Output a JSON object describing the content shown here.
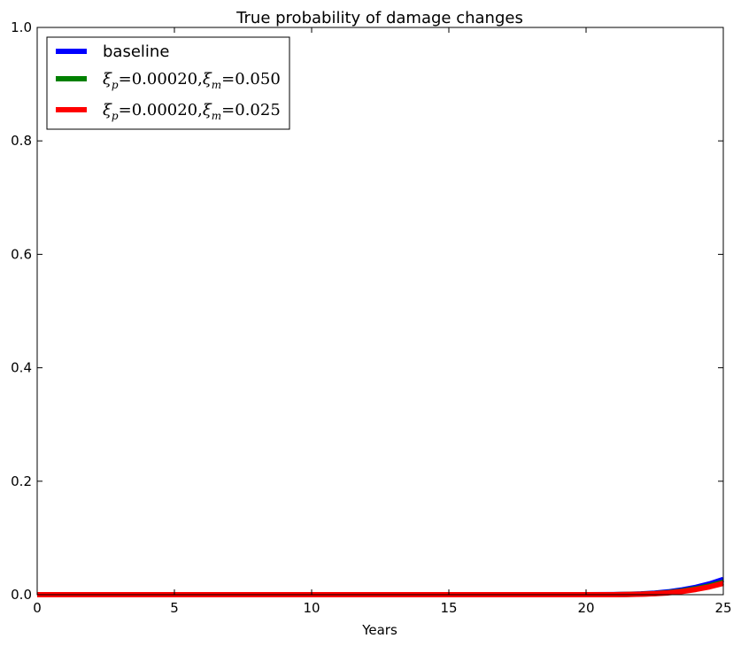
{
  "chart_data": {
    "type": "line",
    "title": "True probability of damage changes",
    "xlabel": "Years",
    "ylabel": "",
    "xlim": [
      0,
      25
    ],
    "ylim": [
      0.0,
      1.0
    ],
    "x_ticks": [
      0,
      5,
      10,
      15,
      20,
      25
    ],
    "x_tick_labels": [
      "0",
      "5",
      "10",
      "15",
      "20",
      "25"
    ],
    "y_ticks": [
      0.0,
      0.2,
      0.4,
      0.6,
      0.8,
      1.0
    ],
    "y_tick_labels": [
      "0.0",
      "0.2",
      "0.4",
      "0.6",
      "0.8",
      "1.0"
    ],
    "grid": false,
    "legend_position": "top-left",
    "x": [
      0,
      2,
      4,
      6,
      8,
      10,
      12,
      14,
      16,
      18,
      20,
      21,
      21.5,
      22,
      22.5,
      23,
      23.5,
      24,
      24.5,
      25
    ],
    "series": [
      {
        "name": "baseline",
        "legend_parts": [
          "baseline"
        ],
        "color": "#0000ff",
        "values": [
          0,
          0,
          0,
          0,
          0,
          0,
          0,
          0,
          0,
          0,
          0,
          0.0002,
          0.0006,
          0.0014,
          0.0028,
          0.005,
          0.0085,
          0.013,
          0.019,
          0.027
        ]
      },
      {
        "name": "ξp=0.00020,ξm=0.050",
        "legend_parts": [
          "ξ",
          "p",
          "=0.00020,",
          "ξ",
          "m",
          "=0.050"
        ],
        "color": "#008000",
        "values": [
          0,
          0,
          0,
          0,
          0,
          0,
          0,
          0,
          0,
          0,
          0,
          0.0001,
          0.0004,
          0.001,
          0.002,
          0.0038,
          0.0065,
          0.0105,
          0.0155,
          0.022
        ]
      },
      {
        "name": "ξp=0.00020,ξm=0.025",
        "legend_parts": [
          "ξ",
          "p",
          "=0.00020,",
          "ξ",
          "m",
          "=0.025"
        ],
        "color": "#ff0000",
        "values": [
          0,
          0,
          0,
          0,
          0,
          0,
          0,
          0,
          0,
          0,
          0,
          0.0001,
          0.0003,
          0.0008,
          0.0017,
          0.0032,
          0.0056,
          0.0092,
          0.0138,
          0.02
        ]
      }
    ]
  }
}
